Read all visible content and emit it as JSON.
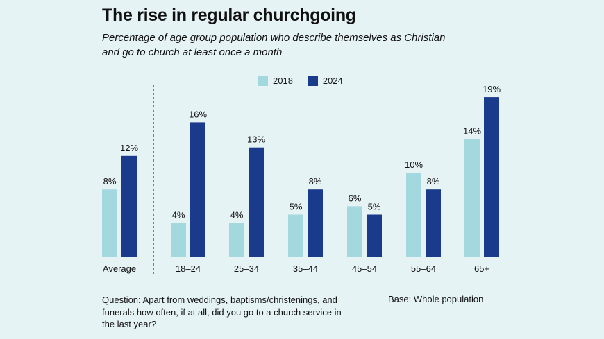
{
  "title": "The rise in regular churchgoing",
  "subtitle": "Percentage of age group population who describe themselves as Christian and go to church at least once a month",
  "chart_data": {
    "type": "bar",
    "title": "The rise in regular churchgoing",
    "categories": [
      "Average",
      "18–24",
      "25–34",
      "35–44",
      "45–54",
      "55–64",
      "65+"
    ],
    "series": [
      {
        "name": "2018",
        "values": [
          8,
          4,
          4,
          5,
          6,
          10,
          14
        ],
        "labels": [
          "8%",
          "4%",
          "4%",
          "5%",
          "6%",
          "10%",
          "14%"
        ],
        "color": "#a3d8df"
      },
      {
        "name": "2024",
        "values": [
          12,
          16,
          13,
          8,
          5,
          8,
          19
        ],
        "labels": [
          "12%",
          "16%",
          "13%",
          "8%",
          "5%",
          "8%",
          "19%"
        ],
        "color": "#1a3a8c"
      }
    ],
    "unit": "%",
    "ylim": [
      0,
      20
    ],
    "grid": false,
    "legend_position": "top-center"
  },
  "footnote": "Question: Apart from weddings, baptisms/christenings, and funerals how often, if at all, did you go to a church service in the last year?",
  "base": "Base: Whole population"
}
